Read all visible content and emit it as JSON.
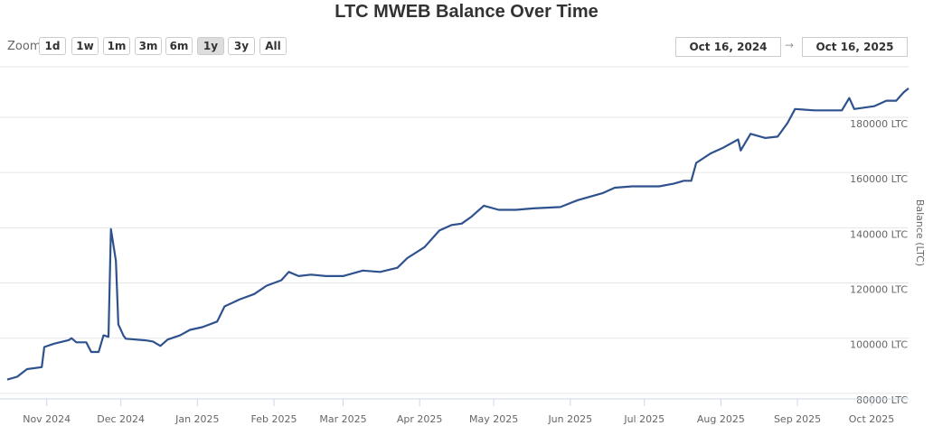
{
  "chart_data": {
    "type": "line",
    "title": "LTC MWEB Balance Over Time",
    "ylabel": "Balance (LTC)",
    "xlabel": "",
    "x_unit": "days since Oct 16, 2024",
    "xlim": [
      0,
      365
    ],
    "ylim": [
      78000,
      198300
    ],
    "grid": true,
    "y_ticks": [
      {
        "v": 80000,
        "label": "80000 LTC"
      },
      {
        "v": 100000,
        "label": "100000 LTC"
      },
      {
        "v": 120000,
        "label": "120000 LTC"
      },
      {
        "v": 140000,
        "label": "140000 LTC"
      },
      {
        "v": 160000,
        "label": "160000 LTC"
      },
      {
        "v": 180000,
        "label": "180000 LTC"
      }
    ],
    "x_ticks": [
      {
        "d": 16,
        "label": "Nov 2024"
      },
      {
        "d": 46,
        "label": "Dec 2024"
      },
      {
        "d": 77,
        "label": "Jan 2025"
      },
      {
        "d": 108,
        "label": "Feb 2025"
      },
      {
        "d": 136,
        "label": "Mar 2025"
      },
      {
        "d": 167,
        "label": "Apr 2025"
      },
      {
        "d": 197,
        "label": "May 2025"
      },
      {
        "d": 228,
        "label": "Jun 2025"
      },
      {
        "d": 258,
        "label": "Jul 2025"
      },
      {
        "d": 289,
        "label": "Aug 2025"
      },
      {
        "d": 320,
        "label": "Sep 2025"
      },
      {
        "d": 350,
        "label": "Oct 2025"
      }
    ],
    "series": [
      {
        "name": "MWEB Balance",
        "color": "#2f528f",
        "points": [
          [
            0,
            85000
          ],
          [
            4,
            86000
          ],
          [
            8,
            88800
          ],
          [
            14,
            89500
          ],
          [
            15,
            96800
          ],
          [
            19,
            98000
          ],
          [
            25,
            99300
          ],
          [
            26,
            100000
          ],
          [
            28,
            98500
          ],
          [
            32,
            98500
          ],
          [
            34,
            95000
          ],
          [
            37,
            95000
          ],
          [
            39,
            101000
          ],
          [
            41,
            100500
          ],
          [
            42,
            139500
          ],
          [
            44,
            128000
          ],
          [
            45,
            105000
          ],
          [
            47,
            101000
          ],
          [
            48,
            99800
          ],
          [
            56,
            99200
          ],
          [
            59,
            98800
          ],
          [
            62,
            97200
          ],
          [
            65,
            99500
          ],
          [
            70,
            101000
          ],
          [
            74,
            103000
          ],
          [
            79,
            104000
          ],
          [
            85,
            106000
          ],
          [
            88,
            111500
          ],
          [
            94,
            114000
          ],
          [
            100,
            116000
          ],
          [
            105,
            119000
          ],
          [
            111,
            121000
          ],
          [
            114,
            124000
          ],
          [
            118,
            122500
          ],
          [
            123,
            123000
          ],
          [
            129,
            122500
          ],
          [
            136,
            122500
          ],
          [
            144,
            124500
          ],
          [
            151,
            124000
          ],
          [
            158,
            125500
          ],
          [
            162,
            129000
          ],
          [
            169,
            133000
          ],
          [
            175,
            139000
          ],
          [
            180,
            141000
          ],
          [
            184,
            141500
          ],
          [
            188,
            144000
          ],
          [
            193,
            148000
          ],
          [
            199,
            146500
          ],
          [
            206,
            146500
          ],
          [
            213,
            147000
          ],
          [
            224,
            147500
          ],
          [
            231,
            150000
          ],
          [
            241,
            152500
          ],
          [
            246,
            154500
          ],
          [
            253,
            155000
          ],
          [
            264,
            155000
          ],
          [
            270,
            156000
          ],
          [
            274,
            157000
          ],
          [
            277,
            157000
          ],
          [
            279,
            163500
          ],
          [
            285,
            167000
          ],
          [
            290,
            169000
          ],
          [
            296,
            172000
          ],
          [
            297,
            168000
          ],
          [
            301,
            174000
          ],
          [
            307,
            172500
          ],
          [
            312,
            173000
          ],
          [
            316,
            178000
          ],
          [
            319,
            183000
          ],
          [
            327,
            182500
          ],
          [
            338,
            182500
          ],
          [
            341,
            187000
          ],
          [
            343,
            183000
          ],
          [
            351,
            184000
          ],
          [
            356,
            186000
          ],
          [
            360,
            186000
          ],
          [
            363,
            189000
          ],
          [
            365,
            190500
          ]
        ]
      }
    ]
  },
  "toolbar": {
    "zoom_label": "Zoom",
    "buttons": [
      "1d",
      "1w",
      "1m",
      "3m",
      "6m",
      "1y",
      "3y",
      "All"
    ],
    "selected": "1y",
    "from": "Oct 16, 2024",
    "to": "Oct 16, 2025",
    "arrow": "→"
  }
}
